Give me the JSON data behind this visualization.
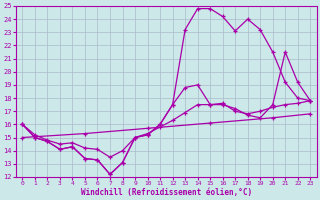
{
  "xlabel": "Windchill (Refroidissement éolien,°C)",
  "xlim": [
    -0.5,
    23.5
  ],
  "ylim": [
    12,
    25
  ],
  "xticks": [
    0,
    1,
    2,
    3,
    4,
    5,
    6,
    7,
    8,
    9,
    10,
    11,
    12,
    13,
    14,
    15,
    16,
    17,
    18,
    19,
    20,
    21,
    22,
    23
  ],
  "yticks": [
    12,
    13,
    14,
    15,
    16,
    17,
    18,
    19,
    20,
    21,
    22,
    23,
    24,
    25
  ],
  "bg_color": "#cce8e8",
  "grid_color": "#aabbcc",
  "line_color": "#aa00aa",
  "line1_x": [
    0,
    1,
    2,
    3,
    4,
    5,
    6,
    7,
    8,
    9,
    10,
    11,
    12,
    13,
    14,
    15,
    16,
    17,
    18,
    19,
    20,
    21,
    22,
    23
  ],
  "line1_y": [
    16.0,
    15.0,
    14.7,
    14.1,
    14.3,
    13.4,
    13.3,
    12.2,
    13.1,
    15.0,
    15.2,
    16.0,
    17.5,
    18.8,
    19.0,
    17.5,
    17.5,
    17.2,
    16.7,
    16.5,
    17.5,
    21.5,
    19.2,
    17.8
  ],
  "line2_x": [
    0,
    1,
    2,
    3,
    4,
    5,
    6,
    7,
    8,
    9,
    10,
    11,
    12,
    13,
    14,
    15,
    16,
    17,
    18,
    19,
    20,
    21,
    22,
    23
  ],
  "line2_y": [
    16.0,
    15.0,
    14.7,
    14.1,
    14.3,
    13.4,
    13.3,
    12.2,
    13.1,
    15.0,
    15.2,
    16.0,
    17.5,
    23.2,
    24.8,
    24.8,
    24.2,
    23.1,
    24.0,
    23.2,
    21.5,
    19.2,
    18.0,
    17.8
  ],
  "line3_x": [
    0,
    1,
    2,
    3,
    4,
    5,
    6,
    7,
    8,
    9,
    10,
    11,
    12,
    13,
    14,
    15,
    16,
    17,
    18,
    19,
    20,
    21,
    22,
    23
  ],
  "line3_y": [
    16.0,
    15.2,
    14.8,
    14.5,
    14.6,
    14.2,
    14.1,
    13.5,
    14.0,
    15.0,
    15.3,
    15.8,
    16.3,
    16.9,
    17.5,
    17.5,
    17.6,
    17.0,
    16.8,
    17.0,
    17.3,
    17.5,
    17.6,
    17.8
  ],
  "line4_x": [
    0,
    5,
    10,
    15,
    20,
    23
  ],
  "line4_y": [
    15.0,
    15.3,
    15.7,
    16.1,
    16.5,
    16.8
  ]
}
